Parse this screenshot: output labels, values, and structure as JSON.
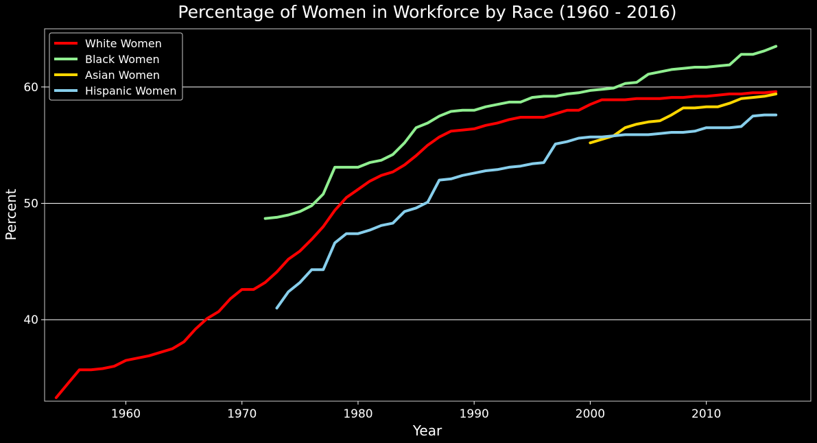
{
  "chart_data": {
    "type": "line",
    "title": "Percentage of Women in Workforce by Race (1960 - 2016)",
    "xlabel": "Year",
    "ylabel": "Percent",
    "xlim": [
      1953,
      2019
    ],
    "ylim": [
      33,
      65
    ],
    "xticks": [
      1960,
      1970,
      1980,
      1990,
      2000,
      2010
    ],
    "yticks": [
      40,
      50,
      60
    ],
    "grid": "horizontal",
    "legend_position": "top-left",
    "background": "#000000",
    "series": [
      {
        "name": "White Women",
        "color": "#ff0000",
        "x": [
          1954,
          1955,
          1956,
          1957,
          1958,
          1959,
          1960,
          1961,
          1962,
          1963,
          1964,
          1965,
          1966,
          1967,
          1968,
          1969,
          1970,
          1971,
          1972,
          1973,
          1974,
          1975,
          1976,
          1977,
          1978,
          1979,
          1980,
          1981,
          1982,
          1983,
          1984,
          1985,
          1986,
          1987,
          1988,
          1989,
          1990,
          1991,
          1992,
          1993,
          1994,
          1995,
          1996,
          1997,
          1998,
          1999,
          2000,
          2001,
          2002,
          2003,
          2004,
          2005,
          2006,
          2007,
          2008,
          2009,
          2010,
          2011,
          2012,
          2013,
          2014,
          2015,
          2016
        ],
        "y": [
          33.3,
          34.5,
          35.7,
          35.7,
          35.8,
          36.0,
          36.5,
          36.7,
          36.9,
          37.2,
          37.5,
          38.1,
          39.2,
          40.1,
          40.7,
          41.8,
          42.6,
          42.6,
          43.2,
          44.1,
          45.2,
          45.9,
          46.9,
          48.0,
          49.4,
          50.5,
          51.2,
          51.9,
          52.4,
          52.7,
          53.3,
          54.1,
          55.0,
          55.7,
          56.2,
          56.3,
          56.4,
          56.7,
          56.9,
          57.2,
          57.4,
          57.4,
          57.4,
          57.7,
          58.0,
          58.0,
          58.5,
          58.9,
          58.9,
          58.9,
          59.0,
          59.0,
          59.0,
          59.1,
          59.1,
          59.2,
          59.2,
          59.3,
          59.4,
          59.4,
          59.5,
          59.5,
          59.6
        ]
      },
      {
        "name": "Black Women",
        "color": "#90ee90",
        "x": [
          1972,
          1973,
          1974,
          1975,
          1976,
          1977,
          1978,
          1979,
          1980,
          1981,
          1982,
          1983,
          1984,
          1985,
          1986,
          1987,
          1988,
          1989,
          1990,
          1991,
          1992,
          1993,
          1994,
          1995,
          1996,
          1997,
          1998,
          1999,
          2000,
          2001,
          2002,
          2003,
          2004,
          2005,
          2006,
          2007,
          2008,
          2009,
          2010,
          2011,
          2012,
          2013,
          2014,
          2015,
          2016
        ],
        "y": [
          48.7,
          48.8,
          49.0,
          49.3,
          49.8,
          50.8,
          53.1,
          53.1,
          53.1,
          53.5,
          53.7,
          54.2,
          55.2,
          56.5,
          56.9,
          57.5,
          57.9,
          58.0,
          58.0,
          58.3,
          58.5,
          58.7,
          58.7,
          59.1,
          59.2,
          59.2,
          59.4,
          59.5,
          59.7,
          59.8,
          59.9,
          60.3,
          60.4,
          61.1,
          61.3,
          61.5,
          61.6,
          61.7,
          61.7,
          61.8,
          61.9,
          62.8,
          62.8,
          63.1,
          63.5
        ]
      },
      {
        "name": "Asian Women",
        "color": "#ffd700",
        "x": [
          2000,
          2001,
          2002,
          2003,
          2004,
          2005,
          2006,
          2007,
          2008,
          2009,
          2010,
          2011,
          2012,
          2013,
          2014,
          2015,
          2016
        ],
        "y": [
          55.2,
          55.5,
          55.8,
          56.5,
          56.8,
          57.0,
          57.1,
          57.6,
          58.2,
          58.2,
          58.3,
          58.3,
          58.6,
          59.0,
          59.1,
          59.2,
          59.4
        ]
      },
      {
        "name": "Hispanic Women",
        "color": "#87ceeb",
        "x": [
          1973,
          1974,
          1975,
          1976,
          1977,
          1978,
          1979,
          1980,
          1981,
          1982,
          1983,
          1984,
          1985,
          1986,
          1987,
          1988,
          1989,
          1990,
          1991,
          1992,
          1993,
          1994,
          1995,
          1996,
          1997,
          1998,
          1999,
          2000,
          2001,
          2002,
          2003,
          2004,
          2005,
          2006,
          2007,
          2008,
          2009,
          2010,
          2011,
          2012,
          2013,
          2014,
          2015,
          2016
        ],
        "y": [
          41.0,
          42.4,
          43.2,
          44.3,
          44.3,
          46.6,
          47.4,
          47.4,
          47.7,
          48.1,
          48.3,
          49.3,
          49.6,
          50.1,
          52.0,
          52.1,
          52.4,
          52.6,
          52.8,
          52.9,
          53.1,
          53.2,
          53.4,
          53.5,
          55.1,
          55.3,
          55.6,
          55.7,
          55.7,
          55.8,
          55.9,
          55.9,
          55.9,
          56.0,
          56.1,
          56.1,
          56.2,
          56.5,
          56.5,
          56.5,
          56.6,
          57.5,
          57.6,
          57.6
        ]
      }
    ]
  }
}
